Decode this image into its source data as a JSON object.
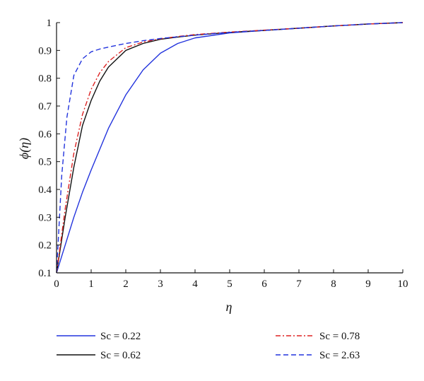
{
  "chart_data": {
    "type": "line",
    "xlabel": "η",
    "ylabel": "ϕ(η)",
    "xlim": [
      0,
      10
    ],
    "ylim": [
      0.1,
      1
    ],
    "x_ticks": [
      "0",
      "1",
      "2",
      "3",
      "4",
      "5",
      "6",
      "7",
      "8",
      "9",
      "10"
    ],
    "y_ticks": [
      "0.1",
      "0.2",
      "0.3",
      "0.4",
      "0.5",
      "0.6",
      "0.7",
      "0.8",
      "0.9",
      "1"
    ],
    "grid": false,
    "legend_position": "bottom",
    "series": [
      {
        "name": "Sc = 0.22",
        "color": "#2233dd",
        "dash": "solid",
        "x": [
          0,
          0.25,
          0.5,
          0.75,
          1.0,
          1.5,
          2.0,
          2.5,
          3.0,
          3.5,
          4.0,
          5.0,
          6.0,
          7.0,
          8.0,
          9.0,
          10.0
        ],
        "y": [
          0.1,
          0.2,
          0.3,
          0.39,
          0.47,
          0.62,
          0.74,
          0.83,
          0.89,
          0.925,
          0.945,
          0.963,
          0.972,
          0.98,
          0.988,
          0.995,
          1.0
        ]
      },
      {
        "name": "Sc = 0.62",
        "color": "#111111",
        "dash": "solid",
        "x": [
          0,
          0.25,
          0.5,
          0.75,
          1.0,
          1.25,
          1.5,
          2.0,
          2.5,
          3.0,
          3.5,
          4.0,
          5.0,
          6.0,
          7.0,
          8.0,
          9.0,
          10.0
        ],
        "y": [
          0.1,
          0.3,
          0.48,
          0.63,
          0.72,
          0.79,
          0.84,
          0.9,
          0.925,
          0.94,
          0.948,
          0.955,
          0.965,
          0.972,
          0.98,
          0.988,
          0.995,
          1.0
        ]
      },
      {
        "name": "Sc = 0.78",
        "color": "#dd2222",
        "dash": "dashdot",
        "x": [
          0,
          0.25,
          0.5,
          0.75,
          1.0,
          1.25,
          1.5,
          2.0,
          2.5,
          3.0,
          3.5,
          4.0,
          5.0,
          6.0,
          7.0,
          8.0,
          9.0,
          10.0
        ],
        "y": [
          0.1,
          0.33,
          0.53,
          0.67,
          0.76,
          0.82,
          0.86,
          0.91,
          0.93,
          0.942,
          0.95,
          0.957,
          0.966,
          0.973,
          0.98,
          0.988,
          0.995,
          1.0
        ]
      },
      {
        "name": "Sc = 2.63",
        "color": "#2233dd",
        "dash": "dashed",
        "x": [
          0,
          0.15,
          0.3,
          0.5,
          0.75,
          1.0,
          1.25,
          1.5,
          2.0,
          2.5,
          3.0,
          4.0,
          5.0,
          6.0,
          7.0,
          8.0,
          9.0,
          10.0
        ],
        "y": [
          0.1,
          0.45,
          0.66,
          0.81,
          0.87,
          0.895,
          0.905,
          0.912,
          0.925,
          0.935,
          0.943,
          0.955,
          0.965,
          0.972,
          0.98,
          0.988,
          0.995,
          1.0
        ]
      }
    ]
  }
}
